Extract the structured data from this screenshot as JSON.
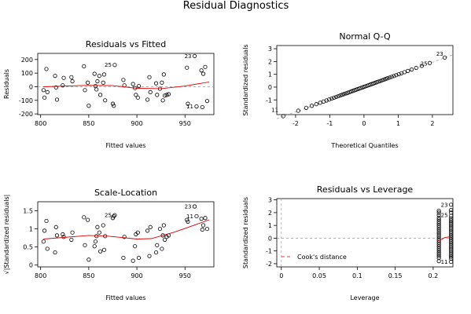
{
  "title": "Residual Diagnostics",
  "chart_data": [
    {
      "type": "scatter",
      "title": "Residuals vs Fitted",
      "xlabel": "Fitted values",
      "ylabel": "Residuals",
      "xlim": [
        797,
        980
      ],
      "ylim": [
        -205,
        245
      ],
      "xticks": [
        800,
        850,
        900,
        950
      ],
      "yticks": [
        -200,
        -100,
        0,
        100,
        200
      ],
      "points": [
        [
          803,
          -25
        ],
        [
          804,
          -80
        ],
        [
          806,
          130
        ],
        [
          807,
          -40
        ],
        [
          815,
          80
        ],
        [
          816,
          -5
        ],
        [
          817,
          -95
        ],
        [
          823,
          10
        ],
        [
          824,
          65
        ],
        [
          832,
          70
        ],
        [
          833,
          40
        ],
        [
          845,
          150
        ],
        [
          846,
          -25
        ],
        [
          849,
          30
        ],
        [
          850,
          -140
        ],
        [
          856,
          95
        ],
        [
          857,
          5
        ],
        [
          858,
          -20
        ],
        [
          859,
          40
        ],
        [
          861,
          80
        ],
        [
          862,
          -60
        ],
        [
          865,
          30
        ],
        [
          866,
          90
        ],
        [
          867,
          -100
        ],
        [
          875,
          -125
        ],
        [
          876,
          -140
        ],
        [
          877,
          160
        ],
        [
          886,
          50
        ],
        [
          887,
          10
        ],
        [
          896,
          20
        ],
        [
          898,
          -10
        ],
        [
          899,
          -60
        ],
        [
          901,
          -80
        ],
        [
          902,
          5
        ],
        [
          911,
          -95
        ],
        [
          913,
          70
        ],
        [
          914,
          -40
        ],
        [
          920,
          25
        ],
        [
          921,
          -60
        ],
        [
          924,
          -15
        ],
        [
          926,
          30
        ],
        [
          927,
          -100
        ],
        [
          928,
          90
        ],
        [
          929,
          -65
        ],
        [
          931,
          -60
        ],
        [
          933,
          -55
        ],
        [
          952,
          140
        ],
        [
          953,
          -125
        ],
        [
          960,
          225
        ],
        [
          962,
          -145
        ],
        [
          967,
          120
        ],
        [
          968,
          -150
        ],
        [
          969,
          95
        ],
        [
          971,
          145
        ],
        [
          973,
          -105
        ]
      ],
      "labels": [
        {
          "x": 877,
          "y": 160,
          "text": "25"
        },
        {
          "x": 960,
          "y": 225,
          "text": "23"
        },
        {
          "x": 962,
          "y": -145,
          "text": "11"
        }
      ],
      "smooth": [
        [
          803,
          0
        ],
        [
          850,
          10
        ],
        [
          875,
          8
        ],
        [
          900,
          -12
        ],
        [
          925,
          -14
        ],
        [
          950,
          5
        ],
        [
          975,
          35
        ]
      ],
      "refline": 0
    },
    {
      "type": "scatter",
      "title": "Normal Q-Q",
      "xlabel": "Theoretical Quantiles",
      "ylabel": "Standardized residuals",
      "xlim": [
        -2.55,
        2.6
      ],
      "ylim": [
        -2.15,
        3.25
      ],
      "xticks": [
        -2,
        -1,
        0,
        1,
        2
      ],
      "yticks": [
        -1,
        0,
        1,
        2,
        3
      ],
      "qq_n": 55,
      "qq_sd": 0.97,
      "labels": [
        {
          "x": -2.41,
          "y": -1.78,
          "text": "11"
        },
        {
          "x": 1.95,
          "y": 1.85,
          "text": "25"
        },
        {
          "x": 2.41,
          "y": 2.62,
          "text": "23"
        }
      ],
      "refline": [
        [
          -2.55,
          -2.47
        ],
        [
          2.6,
          2.52
        ]
      ]
    },
    {
      "type": "scatter",
      "title": "Scale-Location",
      "xlabel": "Fitted values",
      "ylabel": "√|Standardized residuals|",
      "xlim": [
        797,
        980
      ],
      "ylim": [
        -0.05,
        1.75
      ],
      "xticks": [
        800,
        850,
        900,
        950
      ],
      "yticks": [
        0.0,
        0.5,
        1.0,
        1.5
      ],
      "points": [
        [
          803,
          0.65
        ],
        [
          804,
          0.95
        ],
        [
          806,
          1.22
        ],
        [
          807,
          0.45
        ],
        [
          815,
          0.35
        ],
        [
          816,
          1.05
        ],
        [
          817,
          0.82
        ],
        [
          823,
          0.85
        ],
        [
          824,
          0.78
        ],
        [
          832,
          0.7
        ],
        [
          833,
          0.9
        ],
        [
          845,
          1.32
        ],
        [
          846,
          0.55
        ],
        [
          849,
          1.25
        ],
        [
          850,
          0.15
        ],
        [
          856,
          0.52
        ],
        [
          857,
          0.65
        ],
        [
          858,
          0.8
        ],
        [
          859,
          1.05
        ],
        [
          861,
          0.9
        ],
        [
          862,
          0.38
        ],
        [
          865,
          1.1
        ],
        [
          866,
          0.42
        ],
        [
          867,
          0.8
        ],
        [
          875,
          1.3
        ],
        [
          876,
          1.35
        ],
        [
          877,
          1.38
        ],
        [
          886,
          0.2
        ],
        [
          887,
          0.78
        ],
        [
          896,
          0.12
        ],
        [
          898,
          0.52
        ],
        [
          899,
          0.85
        ],
        [
          901,
          0.9
        ],
        [
          902,
          0.2
        ],
        [
          911,
          0.95
        ],
        [
          913,
          0.25
        ],
        [
          914,
          1.05
        ],
        [
          920,
          0.35
        ],
        [
          921,
          0.55
        ],
        [
          924,
          1.0
        ],
        [
          926,
          0.45
        ],
        [
          927,
          0.82
        ],
        [
          928,
          1.1
        ],
        [
          929,
          0.7
        ],
        [
          931,
          0.78
        ],
        [
          933,
          0.82
        ],
        [
          952,
          1.25
        ],
        [
          953,
          1.2
        ],
        [
          960,
          1.62
        ],
        [
          962,
          1.35
        ],
        [
          967,
          1.28
        ],
        [
          968,
          0.98
        ],
        [
          969,
          1.1
        ],
        [
          971,
          1.3
        ],
        [
          973,
          1.0
        ]
      ],
      "labels": [
        {
          "x": 877,
          "y": 1.38,
          "text": "25"
        },
        {
          "x": 960,
          "y": 1.62,
          "text": "23"
        },
        {
          "x": 962,
          "y": 1.35,
          "text": "11"
        }
      ],
      "smooth": [
        [
          803,
          0.72
        ],
        [
          850,
          0.82
        ],
        [
          870,
          0.8
        ],
        [
          900,
          0.72
        ],
        [
          915,
          0.73
        ],
        [
          940,
          0.92
        ],
        [
          975,
          1.25
        ]
      ]
    },
    {
      "type": "scatter",
      "title": "Residuals vs Leverage",
      "xlabel": "Leverage",
      "ylabel": "Standardized residuals",
      "xlim": [
        -0.006,
        0.226
      ],
      "ylim": [
        -2.25,
        3.1
      ],
      "xticks": [
        0.0,
        0.05,
        0.1,
        0.15,
        0.2
      ],
      "yticks": [
        -2,
        -1,
        0,
        1,
        2,
        3
      ],
      "lev_x": [
        0.2075,
        0.2235
      ],
      "lev_y": [
        [
          -1.8,
          -1.55,
          -1.4,
          -1.25,
          -1.1,
          -0.95,
          -0.8,
          -0.65,
          -0.5,
          -0.35,
          -0.2,
          -0.05,
          0.1,
          0.25,
          0.4,
          0.55,
          0.7,
          0.85,
          1.0,
          1.15,
          1.3,
          1.45,
          1.6,
          1.8,
          2.0,
          2.15
        ],
        [
          -1.85,
          -1.6,
          -1.45,
          -1.3,
          -1.15,
          -1.0,
          -0.85,
          -0.7,
          -0.55,
          -0.4,
          -0.25,
          -0.1,
          0.05,
          0.2,
          0.35,
          0.5,
          0.65,
          0.8,
          0.95,
          1.1,
          1.25,
          1.4,
          1.55,
          1.75,
          2.0,
          2.2,
          2.62
        ]
      ],
      "labels": [
        {
          "x": 0.2235,
          "y": 2.62,
          "text": "23"
        },
        {
          "x": 0.2235,
          "y": 1.82,
          "text": "25"
        },
        {
          "x": 0.2235,
          "y": -1.85,
          "text": "11"
        }
      ],
      "smooth": [
        [
          0.2075,
          -0.2
        ],
        [
          0.2155,
          0.05
        ],
        [
          0.2235,
          0.12
        ]
      ],
      "legend": "Cook's distance",
      "refline": 0
    }
  ]
}
